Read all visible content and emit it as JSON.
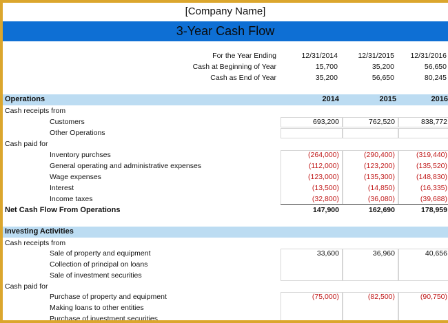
{
  "company_name": "[Company Name]",
  "title": "3-Year Cash Flow",
  "summary": {
    "labels": [
      "For the Year Ending",
      "Cash at Beginning of Year",
      "Cash as End of Year"
    ],
    "columns": [
      [
        "12/31/2014",
        "15,700",
        "35,200"
      ],
      [
        "12/31/2015",
        "35,200",
        "56,650"
      ],
      [
        "12/31/2016",
        "56,650",
        "80,245"
      ]
    ]
  },
  "operations": {
    "header": "Operations",
    "years": [
      "2014",
      "2015",
      "2016"
    ],
    "receipts_label": "Cash receipts from",
    "customers_label": "Customers",
    "customers": [
      "693,200",
      "762,520",
      "838,772"
    ],
    "other_label": "Other Operations",
    "paid_label": "Cash paid for",
    "expenses": [
      {
        "label": "Inventory purchses",
        "values": [
          "(264,000)",
          "(290,400)",
          "(319,440)"
        ]
      },
      {
        "label": "General operating and administrative expenses",
        "values": [
          "(112,000)",
          "(123,200)",
          "(135,520)"
        ]
      },
      {
        "label": "Wage expenses",
        "values": [
          "(123,000)",
          "(135,300)",
          "(148,830)"
        ]
      },
      {
        "label": "Interest",
        "values": [
          "(13,500)",
          "(14,850)",
          "(16,335)"
        ]
      },
      {
        "label": "Income taxes",
        "values": [
          "(32,800)",
          "(36,080)",
          "(39,688)"
        ]
      }
    ],
    "net_label": "Net Cash Flow From Operations",
    "net": [
      "147,900",
      "162,690",
      "178,959"
    ]
  },
  "investing": {
    "header": "Investing Activities",
    "receipts_label": "Cash receipts from",
    "receipts": [
      {
        "label": "Sale of property and equipment",
        "values": [
          "33,600",
          "36,960",
          "40,656"
        ]
      },
      {
        "label": "Collection of principal on loans",
        "values": [
          "",
          "",
          ""
        ]
      },
      {
        "label": "Sale of investment securities",
        "values": [
          "",
          "",
          ""
        ]
      }
    ],
    "paid_label": "Cash paid for",
    "payments": [
      {
        "label": "Purchase of property and equipment",
        "values": [
          "(75,000)",
          "(82,500)",
          "(90,750)"
        ]
      },
      {
        "label": "Making loans to other entities",
        "values": [
          "",
          "",
          ""
        ]
      },
      {
        "label": "Purchase of investment securities",
        "values": [
          "",
          "",
          ""
        ]
      }
    ]
  },
  "colors": {
    "title_band": "#0e6fd4",
    "section_band": "#bcdcf2",
    "frame": "#dba62d",
    "negative": "#c01818"
  }
}
